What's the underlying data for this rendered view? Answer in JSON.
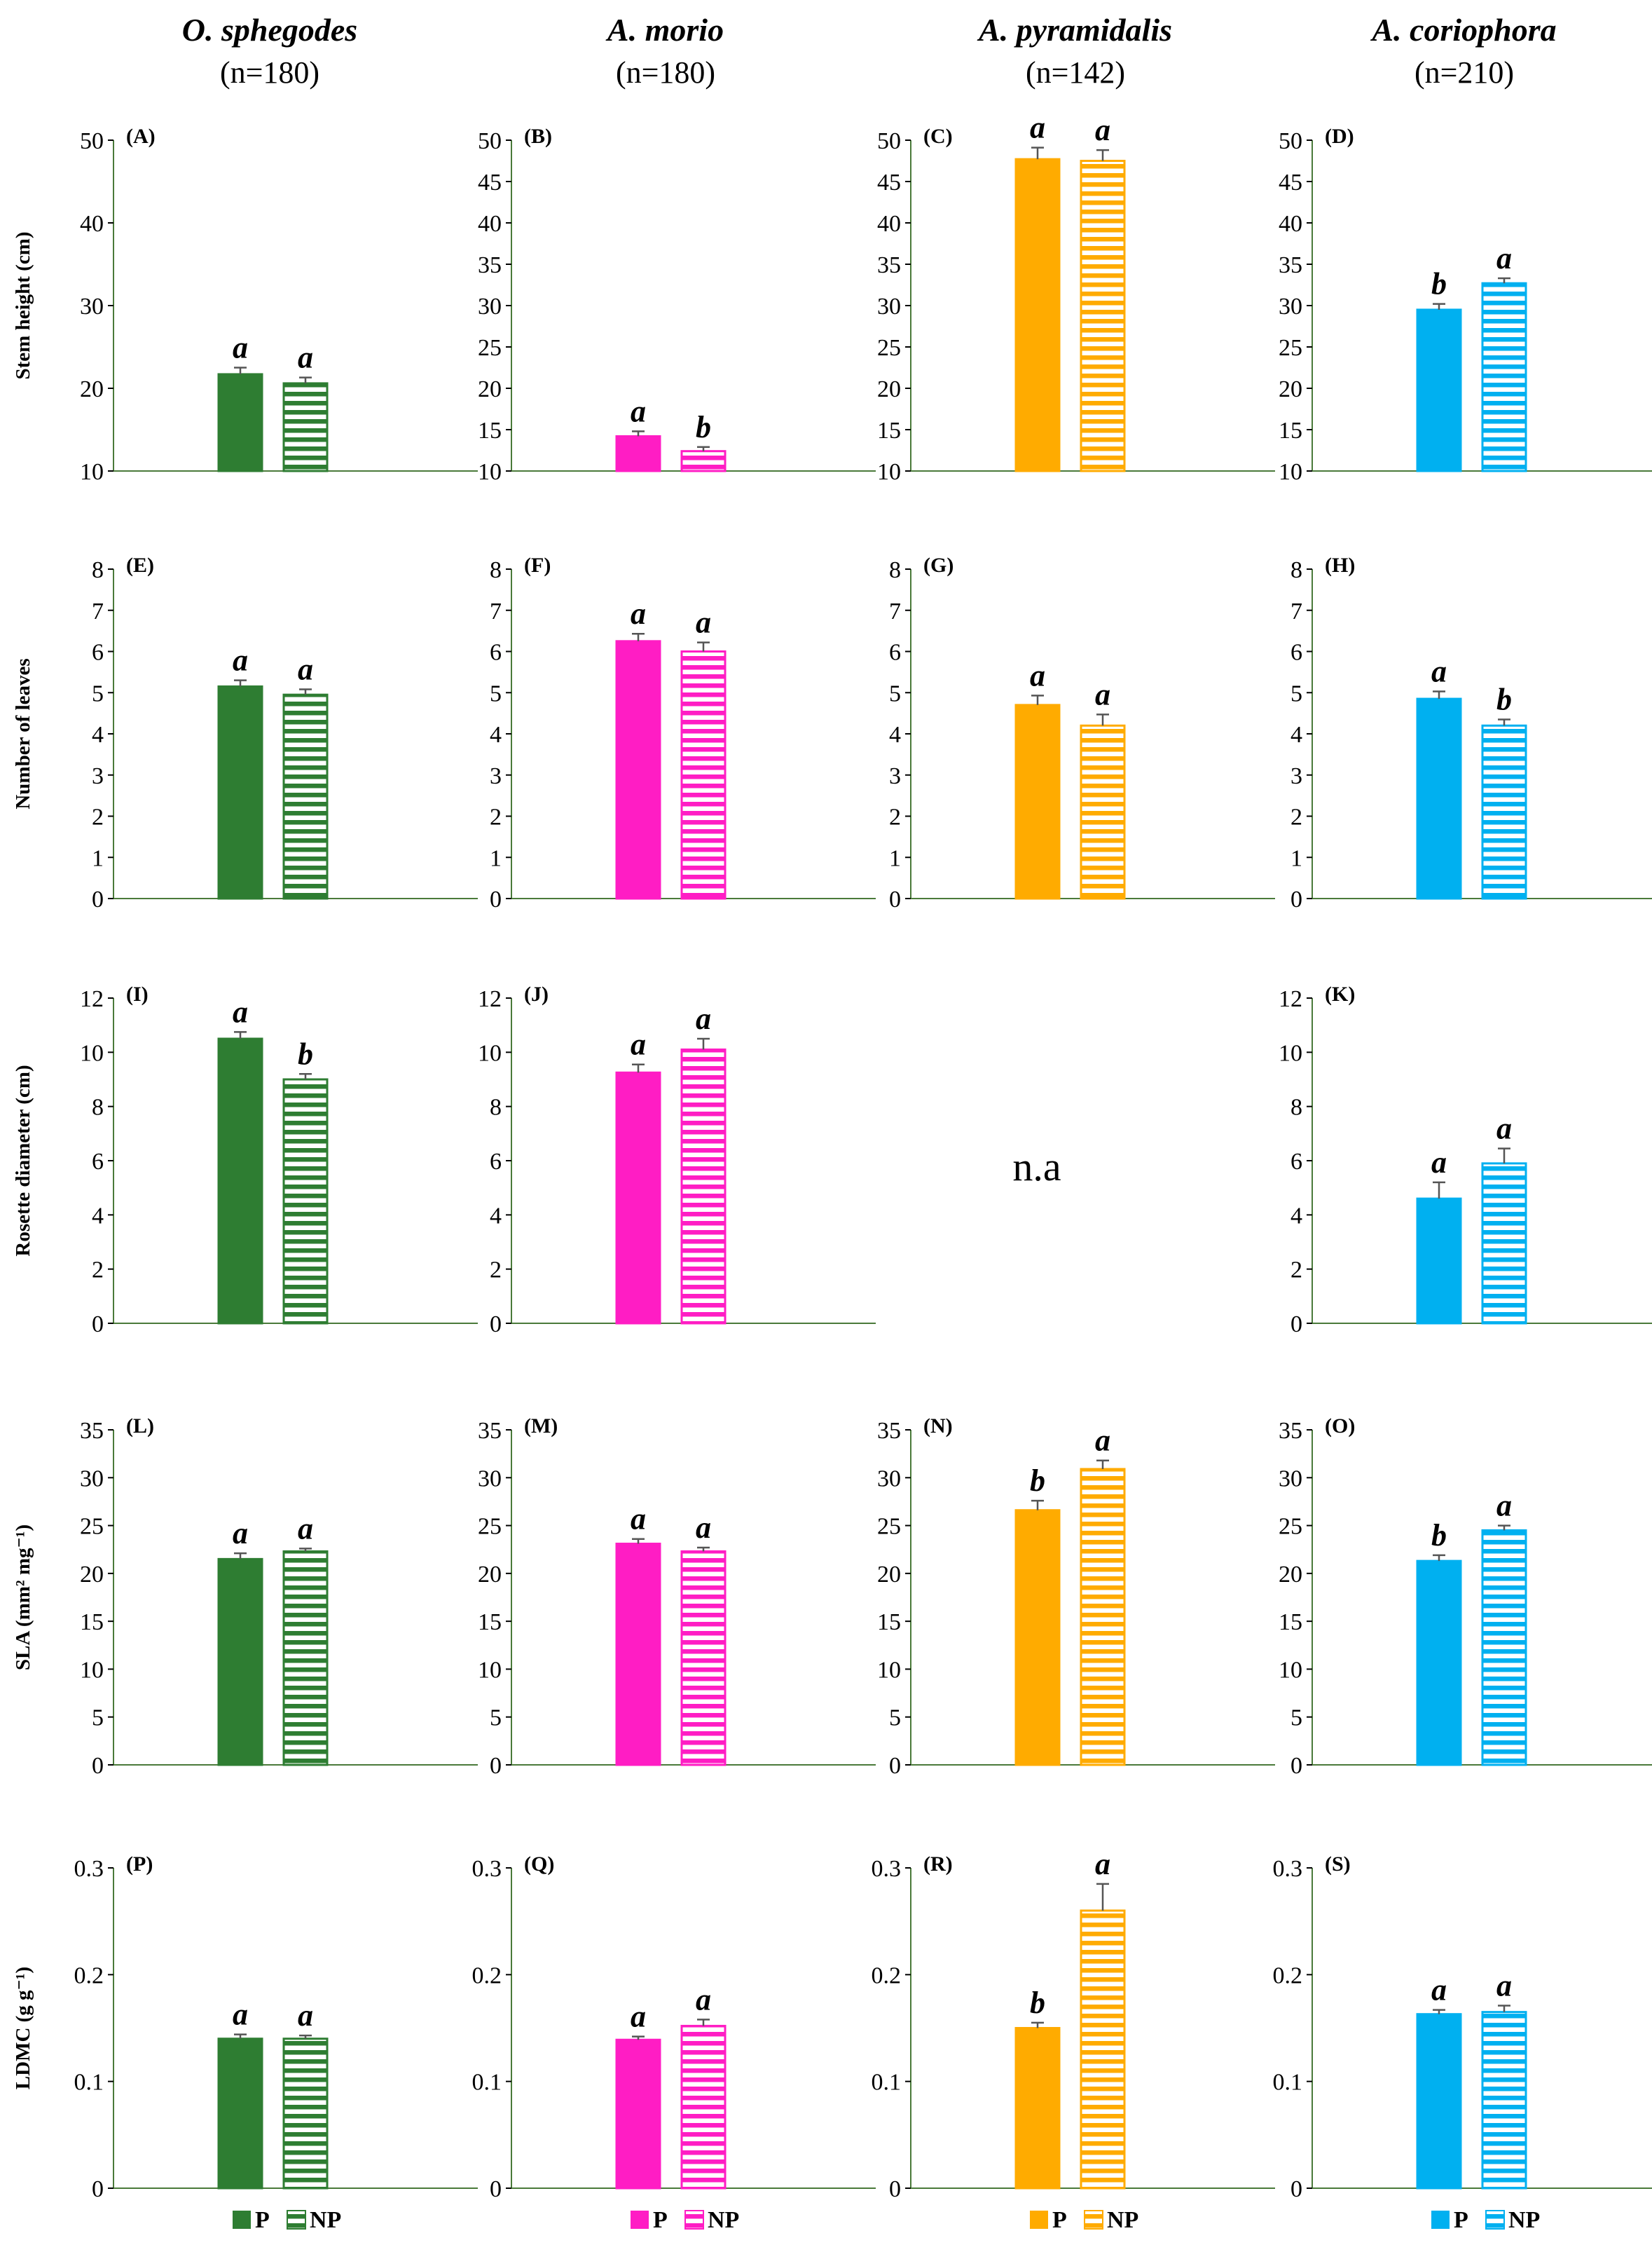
{
  "species": [
    {
      "name": "O. sphegodes",
      "n": "(n=180)",
      "color": "#2e7d32"
    },
    {
      "name": "A. morio",
      "n": "(n=180)",
      "color": "#ff1dc4"
    },
    {
      "name": "A. pyramidalis",
      "n": "(n=142)",
      "color": "#ffab00"
    },
    {
      "name": "A. coriophora",
      "n": "(n=210)",
      "color": "#00b0f0"
    }
  ],
  "legend": {
    "p": "P",
    "np": "NP"
  },
  "na_text": "n.a",
  "rows": [
    {
      "ylabel": "Stem height (cm)"
    },
    {
      "ylabel": "Number of leaves"
    },
    {
      "ylabel": "Rosette diameter (cm)"
    },
    {
      "ylabel": "SLA (mm² mg⁻¹)"
    },
    {
      "ylabel": "LDMC (g g⁻¹)"
    }
  ],
  "chart_data": [
    {
      "type": "bar",
      "panel": "(A)",
      "species": "O. sphegodes",
      "ylabel": "Stem height (cm)",
      "ylim": [
        10,
        50
      ],
      "ticks": [
        "10",
        "20",
        "30",
        "40",
        "50"
      ],
      "categories": [
        "P",
        "NP"
      ],
      "values": [
        21.7,
        20.6
      ],
      "errors": [
        0.8,
        0.7
      ],
      "letters": [
        "a",
        "a"
      ]
    },
    {
      "type": "bar",
      "panel": "(B)",
      "species": "A. morio",
      "ylabel": "Stem height (cm)",
      "ylim": [
        10,
        50
      ],
      "ticks": [
        "10",
        "15",
        "20",
        "25",
        "30",
        "35",
        "40",
        "45",
        "50"
      ],
      "categories": [
        "P",
        "NP"
      ],
      "values": [
        14.2,
        12.4
      ],
      "errors": [
        0.6,
        0.5
      ],
      "letters": [
        "a",
        "b"
      ]
    },
    {
      "type": "bar",
      "panel": "(C)",
      "species": "A. pyramidalis",
      "ylabel": "Stem height (cm)",
      "ylim": [
        10,
        50
      ],
      "ticks": [
        "10",
        "15",
        "20",
        "25",
        "30",
        "35",
        "40",
        "45",
        "50"
      ],
      "categories": [
        "P",
        "NP"
      ],
      "values": [
        47.7,
        47.5
      ],
      "errors": [
        1.4,
        1.3
      ],
      "letters": [
        "a",
        "a"
      ]
    },
    {
      "type": "bar",
      "panel": "(D)",
      "species": "A. coriophora",
      "ylabel": "Stem height (cm)",
      "ylim": [
        10,
        50
      ],
      "ticks": [
        "10",
        "15",
        "20",
        "25",
        "30",
        "35",
        "40",
        "45",
        "50"
      ],
      "categories": [
        "P",
        "NP"
      ],
      "values": [
        29.5,
        32.7
      ],
      "errors": [
        0.7,
        0.6
      ],
      "letters": [
        "b",
        "a"
      ]
    },
    {
      "type": "bar",
      "panel": "(E)",
      "species": "O. sphegodes",
      "ylabel": "Number of leaves",
      "ylim": [
        0,
        8
      ],
      "ticks": [
        "0",
        "1",
        "2",
        "3",
        "4",
        "5",
        "6",
        "7",
        "8"
      ],
      "categories": [
        "P",
        "NP"
      ],
      "values": [
        5.15,
        4.95
      ],
      "errors": [
        0.15,
        0.13
      ],
      "letters": [
        "a",
        "a"
      ]
    },
    {
      "type": "bar",
      "panel": "(F)",
      "species": "A. morio",
      "ylabel": "Number of leaves",
      "ylim": [
        0,
        8
      ],
      "ticks": [
        "0",
        "1",
        "2",
        "3",
        "4",
        "5",
        "6",
        "7",
        "8"
      ],
      "categories": [
        "P",
        "NP"
      ],
      "values": [
        6.25,
        6.0
      ],
      "errors": [
        0.18,
        0.22
      ],
      "letters": [
        "a",
        "a"
      ]
    },
    {
      "type": "bar",
      "panel": "(G)",
      "species": "A. pyramidalis",
      "ylabel": "Number of leaves",
      "ylim": [
        0,
        8
      ],
      "ticks": [
        "0",
        "1",
        "2",
        "3",
        "4",
        "5",
        "6",
        "7",
        "8"
      ],
      "categories": [
        "P",
        "NP"
      ],
      "values": [
        4.7,
        4.2
      ],
      "errors": [
        0.23,
        0.27
      ],
      "letters": [
        "a",
        "a"
      ]
    },
    {
      "type": "bar",
      "panel": "(H)",
      "species": "A. coriophora",
      "ylabel": "Number of leaves",
      "ylim": [
        0,
        8
      ],
      "ticks": [
        "0",
        "1",
        "2",
        "3",
        "4",
        "5",
        "6",
        "7",
        "8"
      ],
      "categories": [
        "P",
        "NP"
      ],
      "values": [
        4.85,
        4.2
      ],
      "errors": [
        0.18,
        0.15
      ],
      "letters": [
        "a",
        "b"
      ]
    },
    {
      "type": "bar",
      "panel": "(I)",
      "species": "O. sphegodes",
      "ylabel": "Rosette diameter (cm)",
      "ylim": [
        0,
        12
      ],
      "ticks": [
        "0",
        "2",
        "4",
        "6",
        "8",
        "10",
        "12"
      ],
      "categories": [
        "P",
        "NP"
      ],
      "values": [
        10.5,
        9.0
      ],
      "errors": [
        0.25,
        0.2
      ],
      "letters": [
        "a",
        "b"
      ]
    },
    {
      "type": "bar",
      "panel": "(J)",
      "species": "A. morio",
      "ylabel": "Rosette diameter (cm)",
      "ylim": [
        0,
        12
      ],
      "ticks": [
        "0",
        "2",
        "4",
        "6",
        "8",
        "10",
        "12"
      ],
      "categories": [
        "P",
        "NP"
      ],
      "values": [
        9.25,
        10.1
      ],
      "errors": [
        0.3,
        0.4
      ],
      "letters": [
        "a",
        "a"
      ]
    },
    {
      "type": "na",
      "panel": "",
      "species": "A. pyramidalis",
      "ylabel": "Rosette diameter (cm)"
    },
    {
      "type": "bar",
      "panel": "(K)",
      "species": "A. coriophora",
      "ylabel": "Rosette diameter (cm)",
      "ylim": [
        0,
        12
      ],
      "ticks": [
        "0",
        "2",
        "4",
        "6",
        "8",
        "10",
        "12"
      ],
      "categories": [
        "P",
        "NP"
      ],
      "values": [
        4.6,
        5.9
      ],
      "errors": [
        0.6,
        0.55
      ],
      "letters": [
        "a",
        "a"
      ]
    },
    {
      "type": "bar",
      "panel": "(L)",
      "species": "O. sphegodes",
      "ylabel": "SLA (mm² mg⁻¹)",
      "ylim": [
        0,
        35
      ],
      "ticks": [
        "0",
        "5",
        "10",
        "15",
        "20",
        "25",
        "30",
        "35"
      ],
      "categories": [
        "P",
        "NP"
      ],
      "values": [
        21.5,
        22.3
      ],
      "errors": [
        0.6,
        0.3
      ],
      "letters": [
        "a",
        "a"
      ]
    },
    {
      "type": "bar",
      "panel": "(M)",
      "species": "A. morio",
      "ylabel": "SLA (mm² mg⁻¹)",
      "ylim": [
        0,
        35
      ],
      "ticks": [
        "0",
        "5",
        "10",
        "15",
        "20",
        "25",
        "30",
        "35"
      ],
      "categories": [
        "P",
        "NP"
      ],
      "values": [
        23.1,
        22.3
      ],
      "errors": [
        0.5,
        0.4
      ],
      "letters": [
        "a",
        "a"
      ]
    },
    {
      "type": "bar",
      "panel": "(N)",
      "species": "A. pyramidalis",
      "ylabel": "SLA (mm² mg⁻¹)",
      "ylim": [
        0,
        35
      ],
      "ticks": [
        "0",
        "5",
        "10",
        "15",
        "20",
        "25",
        "30",
        "35"
      ],
      "categories": [
        "P",
        "NP"
      ],
      "values": [
        26.6,
        30.9
      ],
      "errors": [
        1.0,
        0.9
      ],
      "letters": [
        "b",
        "a"
      ]
    },
    {
      "type": "bar",
      "panel": "(O)",
      "species": "A. coriophora",
      "ylabel": "SLA (mm² mg⁻¹)",
      "ylim": [
        0,
        35
      ],
      "ticks": [
        "0",
        "5",
        "10",
        "15",
        "20",
        "25",
        "30",
        "35"
      ],
      "categories": [
        "P",
        "NP"
      ],
      "values": [
        21.3,
        24.5
      ],
      "errors": [
        0.6,
        0.5
      ],
      "letters": [
        "b",
        "a"
      ]
    },
    {
      "type": "bar",
      "panel": "(P)",
      "species": "O. sphegodes",
      "ylabel": "LDMC (g g⁻¹)",
      "ylim": [
        0,
        0.3
      ],
      "ticks": [
        "0",
        "0.1",
        "0.2",
        "0.3"
      ],
      "categories": [
        "P",
        "NP"
      ],
      "values": [
        0.14,
        0.14
      ],
      "errors": [
        0.004,
        0.003
      ],
      "letters": [
        "a",
        "a"
      ]
    },
    {
      "type": "bar",
      "panel": "(Q)",
      "species": "A. morio",
      "ylabel": "LDMC (g g⁻¹)",
      "ylim": [
        0,
        0.3
      ],
      "ticks": [
        "0",
        "0.1",
        "0.2",
        "0.3"
      ],
      "categories": [
        "P",
        "NP"
      ],
      "values": [
        0.139,
        0.152
      ],
      "errors": [
        0.003,
        0.006
      ],
      "letters": [
        "a",
        "a"
      ]
    },
    {
      "type": "bar",
      "panel": "(R)",
      "species": "A. pyramidalis",
      "ylabel": "LDMC (g g⁻¹)",
      "ylim": [
        0,
        0.3
      ],
      "ticks": [
        "0",
        "0.1",
        "0.2",
        "0.3"
      ],
      "categories": [
        "P",
        "NP"
      ],
      "values": [
        0.15,
        0.26
      ],
      "errors": [
        0.005,
        0.025
      ],
      "letters": [
        "b",
        "a"
      ]
    },
    {
      "type": "bar",
      "panel": "(S)",
      "species": "A. coriophora",
      "ylabel": "LDMC (g g⁻¹)",
      "ylim": [
        0,
        0.3
      ],
      "ticks": [
        "0",
        "0.1",
        "0.2",
        "0.3"
      ],
      "categories": [
        "P",
        "NP"
      ],
      "values": [
        0.163,
        0.165
      ],
      "errors": [
        0.004,
        0.006
      ],
      "letters": [
        "a",
        "a"
      ]
    }
  ]
}
